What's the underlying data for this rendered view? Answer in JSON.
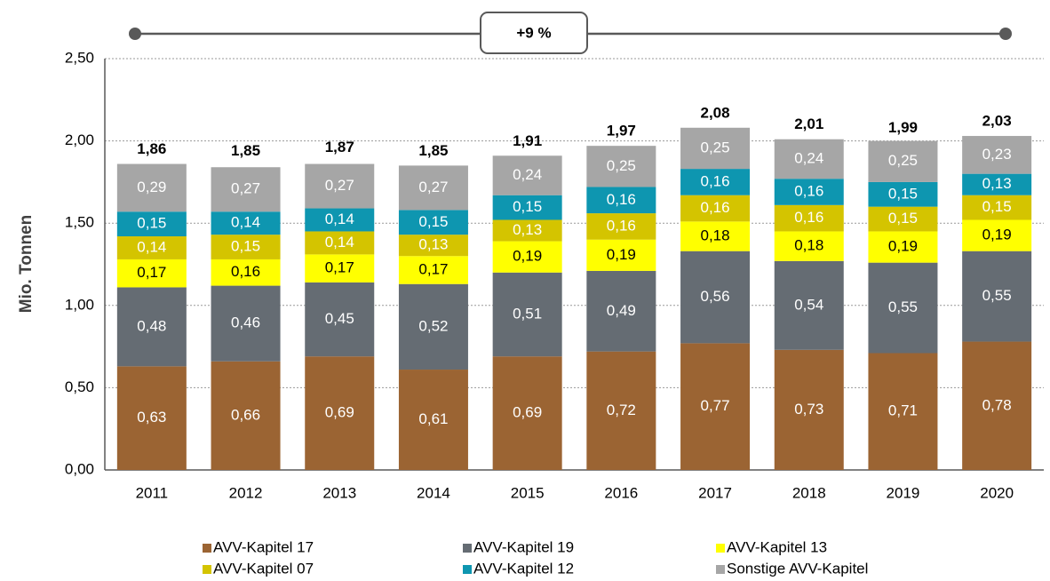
{
  "chart_data": {
    "type": "stacked_bar",
    "y_axis_label": "Mio. Tonnen",
    "annotation": "+9 %",
    "categories": [
      "2011",
      "2012",
      "2013",
      "2014",
      "2015",
      "2016",
      "2017",
      "2018",
      "2019",
      "2020"
    ],
    "series": [
      {
        "name": "AVV-Kapitel 17",
        "color": "#9b6433",
        "label_color": "#ffffff",
        "values": [
          0.63,
          0.66,
          0.69,
          0.61,
          0.69,
          0.72,
          0.77,
          0.73,
          0.71,
          0.78
        ],
        "value_labels": [
          "0,63",
          "0,66",
          "0,69",
          "0,61",
          "0,69",
          "0,72",
          "0,77",
          "0,73",
          "0,71",
          "0,78"
        ]
      },
      {
        "name": "AVV-Kapitel 19",
        "color": "#656c73",
        "label_color": "#ffffff",
        "values": [
          0.48,
          0.46,
          0.45,
          0.52,
          0.51,
          0.49,
          0.56,
          0.54,
          0.55,
          0.55
        ],
        "value_labels": [
          "0,48",
          "0,46",
          "0,45",
          "0,52",
          "0,51",
          "0,49",
          "0,56",
          "0,54",
          "0,55",
          "0,55"
        ]
      },
      {
        "name": "AVV-Kapitel 13",
        "color": "#ffff00",
        "label_color": "#000000",
        "values": [
          0.17,
          0.16,
          0.17,
          0.17,
          0.19,
          0.19,
          0.18,
          0.18,
          0.19,
          0.19
        ],
        "value_labels": [
          "0,17",
          "0,16",
          "0,17",
          "0,17",
          "0,19",
          "0,19",
          "0,18",
          "0,18",
          "0,19",
          "0,19"
        ]
      },
      {
        "name": "AVV-Kapitel 07",
        "color": "#d4c400",
        "label_color": "#ffffff",
        "values": [
          0.14,
          0.15,
          0.14,
          0.13,
          0.13,
          0.16,
          0.16,
          0.16,
          0.15,
          0.15
        ],
        "value_labels": [
          "0,14",
          "0,15",
          "0,14",
          "0,13",
          "0,13",
          "0,16",
          "0,16",
          "0,16",
          "0,15",
          "0,15"
        ]
      },
      {
        "name": "AVV-Kapitel 12",
        "color": "#0e96b0",
        "label_color": "#ffffff",
        "values": [
          0.15,
          0.14,
          0.14,
          0.15,
          0.15,
          0.16,
          0.16,
          0.16,
          0.15,
          0.13
        ],
        "value_labels": [
          "0,15",
          "0,14",
          "0,14",
          "0,15",
          "0,15",
          "0,16",
          "0,16",
          "0,16",
          "0,15",
          "0,13"
        ]
      },
      {
        "name": "Sonstige AVV-Kapitel",
        "color": "#a6a6a6",
        "label_color": "#ffffff",
        "values": [
          0.29,
          0.27,
          0.27,
          0.27,
          0.24,
          0.25,
          0.25,
          0.24,
          0.25,
          0.23
        ],
        "value_labels": [
          "0,29",
          "0,27",
          "0,27",
          "0,27",
          "0,24",
          "0,25",
          "0,25",
          "0,24",
          "0,25",
          "0,23"
        ]
      }
    ],
    "totals": {
      "values": [
        1.86,
        1.85,
        1.87,
        1.85,
        1.91,
        1.97,
        2.08,
        2.01,
        1.99,
        2.03
      ],
      "value_labels": [
        "1,86",
        "1,85",
        "1,87",
        "1,85",
        "1,91",
        "1,97",
        "2,08",
        "2,01",
        "1,99",
        "2,03"
      ]
    },
    "ylim": [
      0,
      2.5
    ],
    "yticks": [
      {
        "value": 0,
        "label": "0,00"
      },
      {
        "value": 0.5,
        "label": "0,50"
      },
      {
        "value": 1,
        "label": "1,00"
      },
      {
        "value": 1.5,
        "label": "1,50"
      },
      {
        "value": 2,
        "label": "2,00"
      },
      {
        "value": 2.5,
        "label": "2,50"
      }
    ],
    "grid": true
  }
}
